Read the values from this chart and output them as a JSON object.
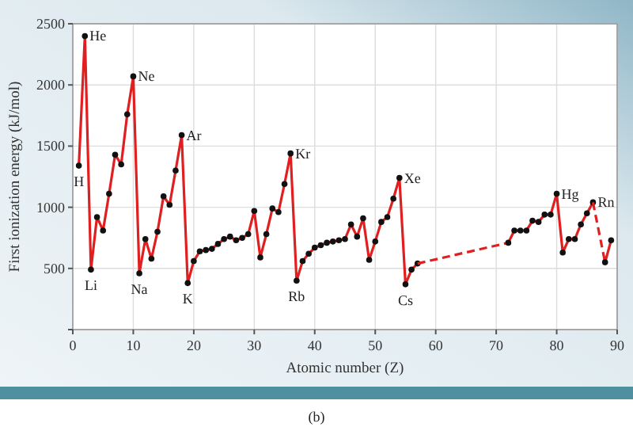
{
  "chart_data": {
    "type": "line",
    "xlabel": "Atomic number (Z)",
    "ylabel": "First ionization energy (kJ/mol)",
    "xlim": [
      0,
      90
    ],
    "ylim": [
      0,
      2500
    ],
    "xticks": [
      0,
      10,
      20,
      30,
      40,
      50,
      60,
      70,
      80,
      90
    ],
    "yticks": [
      {
        "value": 0,
        "label": null
      },
      500,
      1000,
      1500,
      2000,
      2500
    ],
    "grid": true,
    "series": [
      {
        "color": "#e02020",
        "marker": "circle",
        "line_style": "solid",
        "x": [
          1,
          2,
          3,
          4,
          5,
          6,
          7,
          8,
          9,
          10,
          11,
          12,
          13,
          14,
          15,
          16,
          17,
          18,
          19,
          20,
          21,
          22,
          23,
          24,
          25,
          26,
          27,
          28,
          29,
          30,
          31,
          32,
          33,
          34,
          35,
          36,
          37,
          38,
          39,
          40,
          41,
          42,
          43,
          44,
          45,
          46,
          47,
          48,
          49,
          50,
          51,
          52,
          53,
          54,
          55,
          56,
          57
        ],
        "values": [
          1340,
          2400,
          490,
          920,
          810,
          1110,
          1430,
          1350,
          1760,
          2070,
          460,
          740,
          580,
          800,
          1090,
          1020,
          1300,
          1590,
          380,
          560,
          640,
          650,
          660,
          700,
          740,
          760,
          730,
          750,
          780,
          970,
          590,
          780,
          990,
          960,
          1190,
          1440,
          400,
          560,
          620,
          670,
          690,
          710,
          720,
          730,
          740,
          860,
          760,
          910,
          570,
          720,
          880,
          920,
          1070,
          1240,
          370,
          490,
          540
        ]
      },
      {
        "color": "#e02020",
        "line_style": "dashed",
        "x": [
          57,
          72
        ],
        "values": [
          540,
          710
        ]
      },
      {
        "color": "#e02020",
        "marker": "circle",
        "line_style": "solid",
        "x": [
          72,
          73,
          74,
          75,
          76,
          77,
          78,
          79,
          80,
          81,
          82,
          83,
          84,
          85,
          86
        ],
        "values": [
          710,
          810,
          810,
          810,
          890,
          880,
          940,
          940,
          1110,
          630,
          740,
          740,
          860,
          950,
          1040
        ]
      },
      {
        "color": "#e02020",
        "line_style": "dashed",
        "x": [
          86,
          88
        ],
        "values": [
          1040,
          550
        ]
      },
      {
        "color": "#e02020",
        "marker": "circle",
        "line_style": "solid",
        "x": [
          88,
          89
        ],
        "values": [
          550,
          730
        ]
      }
    ],
    "annotations": [
      {
        "text": "H",
        "x": 1,
        "y": 1340
      },
      {
        "text": "He",
        "x": 2,
        "y": 2400
      },
      {
        "text": "Li",
        "x": 3,
        "y": 490
      },
      {
        "text": "Ne",
        "x": 10,
        "y": 2070
      },
      {
        "text": "Na",
        "x": 11,
        "y": 460
      },
      {
        "text": "Ar",
        "x": 18,
        "y": 1590
      },
      {
        "text": "K",
        "x": 19,
        "y": 380
      },
      {
        "text": "Kr",
        "x": 36,
        "y": 1440
      },
      {
        "text": "Rb",
        "x": 37,
        "y": 400
      },
      {
        "text": "Xe",
        "x": 54,
        "y": 1240
      },
      {
        "text": "Cs",
        "x": 55,
        "y": 370
      },
      {
        "text": "Hg",
        "x": 80,
        "y": 1110
      },
      {
        "text": "Rn",
        "x": 86,
        "y": 1040
      },
      "(b)"
    ]
  }
}
